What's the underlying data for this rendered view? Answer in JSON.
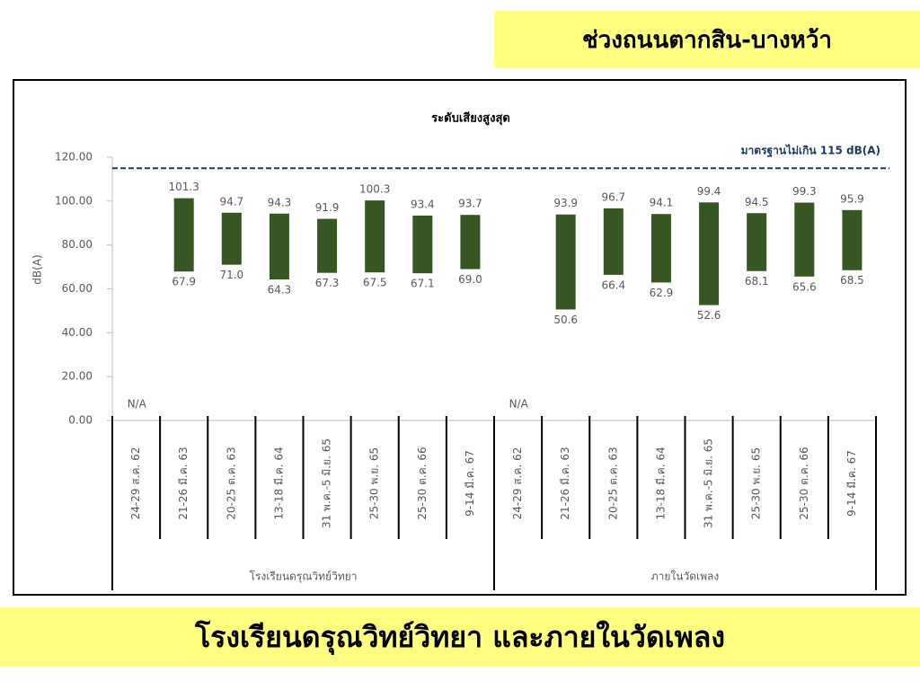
{
  "header": {
    "title": "ช่วงถนนตากสิน-บางหว้า"
  },
  "footer": {
    "title": "โรงเรียนดรุณวิทย์วิทยา และภายในวัดเพลง"
  },
  "chart_data": {
    "type": "floating-bar",
    "title": "ระดับเสียงสูงสุด",
    "y_label": "dB(A)",
    "color": "#375623",
    "ylim": [
      0,
      120
    ],
    "yticks": [
      {
        "value": 0,
        "label": "0.00"
      },
      {
        "value": 20,
        "label": "20.00"
      },
      {
        "value": 40,
        "label": "40.00"
      },
      {
        "value": 60,
        "label": "60.00"
      },
      {
        "value": 80,
        "label": "80.00"
      },
      {
        "value": 100,
        "label": "100.00"
      },
      {
        "value": 120,
        "label": "120.00"
      }
    ],
    "reference": {
      "value": 115,
      "label": "มาตรฐานไม่เกิน 115 dB(A)",
      "color": "#1f3864"
    },
    "missing_label": "N/A",
    "groups": [
      {
        "label": "โรงเรียนดรุณวิทย์วิทยา",
        "categories": [
          "24-29 ส.ค. 62",
          "21-26 มี.ค. 63",
          "20-25 ต.ค. 63",
          "13-18 มี.ค. 64",
          "31 พ.ค.-5 มิ.ย. 65",
          "25-30 พ.ย. 65",
          "25-30 ต.ค. 66",
          "9-14 มี.ค. 67"
        ],
        "low": [
          null,
          67.9,
          71.0,
          64.3,
          67.3,
          67.5,
          67.1,
          69.0
        ],
        "low_labels": [
          null,
          "67.9",
          "71.0",
          "64.3",
          "67.3",
          "67.5",
          "67.1",
          "69.0"
        ],
        "high": [
          null,
          101.3,
          94.7,
          94.3,
          91.9,
          100.3,
          93.4,
          93.7
        ],
        "high_labels": [
          null,
          "101.3",
          "94.7",
          "94.3",
          "91.9",
          "100.3",
          "93.4",
          "93.7"
        ]
      },
      {
        "label": "ภายในวัดเพลง",
        "categories": [
          "24-29 ส.ค. 62",
          "21-26 มี.ค. 63",
          "20-25 ต.ค. 63",
          "13-18 มี.ค. 64",
          "31 พ.ค.-5 มิ.ย. 65",
          "25-30 พ.ย. 65",
          "25-30 ต.ค. 66",
          "9-14 มี.ค. 67"
        ],
        "low": [
          null,
          50.6,
          66.4,
          62.9,
          52.6,
          68.1,
          65.6,
          68.5
        ],
        "low_labels": [
          null,
          "50.6",
          "66.4",
          "62.9",
          "52.6",
          "68.1",
          "65.6",
          "68.5"
        ],
        "high": [
          null,
          93.9,
          96.7,
          94.1,
          99.4,
          94.5,
          99.3,
          95.9
        ],
        "high_labels": [
          null,
          "93.9",
          "96.7",
          "94.1",
          "99.4",
          "94.5",
          "99.3",
          "95.9"
        ]
      }
    ]
  }
}
